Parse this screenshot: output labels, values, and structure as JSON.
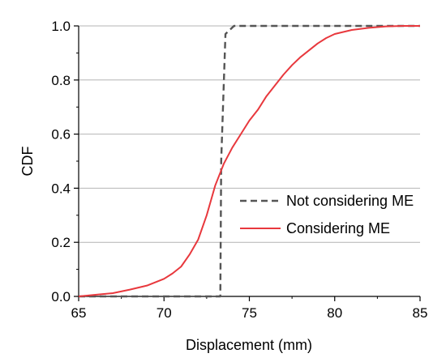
{
  "chart_data": {
    "type": "line",
    "title": "",
    "xlabel": "Displacement (mm)",
    "ylabel": "CDF",
    "xlim": [
      65,
      85
    ],
    "ylim": [
      0.0,
      1.0
    ],
    "xticks": [
      "65",
      "70",
      "75",
      "80",
      "85"
    ],
    "yticks": [
      "0.0",
      "0.2",
      "0.4",
      "0.6",
      "0.8",
      "1.0"
    ],
    "grid": "horizontal",
    "legend_position": "center-right",
    "series": [
      {
        "name": "Not considering ME",
        "style": "dashed",
        "color": "#555555",
        "x": [
          65,
          73.3,
          73.35,
          73.6,
          74.1,
          85
        ],
        "y": [
          0.0,
          0.0,
          0.5,
          0.97,
          1.0,
          1.0
        ]
      },
      {
        "name": "Considering ME",
        "style": "solid",
        "color": "#e8383d",
        "x": [
          65,
          67,
          68,
          69,
          70,
          70.5,
          71,
          71.5,
          72,
          72.5,
          73,
          73.5,
          74,
          74.5,
          75,
          75.5,
          76,
          76.5,
          77,
          77.5,
          78,
          78.5,
          79,
          79.5,
          80,
          81,
          82,
          83,
          84,
          85
        ],
        "y": [
          0.0,
          0.012,
          0.025,
          0.04,
          0.065,
          0.085,
          0.11,
          0.155,
          0.21,
          0.3,
          0.41,
          0.49,
          0.55,
          0.6,
          0.65,
          0.69,
          0.74,
          0.78,
          0.82,
          0.855,
          0.885,
          0.91,
          0.935,
          0.955,
          0.97,
          0.985,
          0.993,
          0.998,
          1.0,
          1.0
        ]
      }
    ]
  }
}
